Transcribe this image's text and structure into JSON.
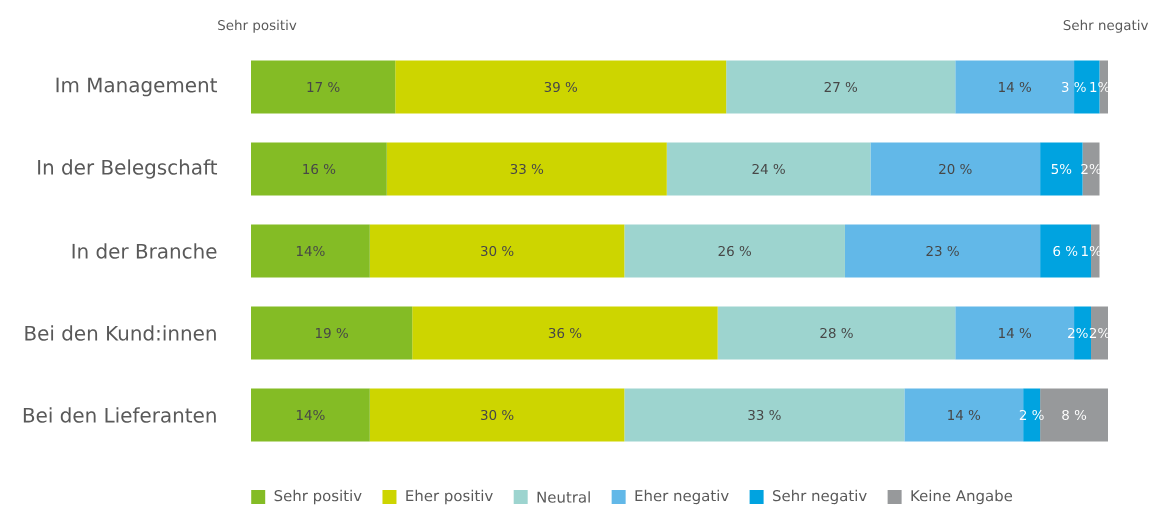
{
  "chart_data": {
    "type": "bar",
    "orientation": "horizontal",
    "stacked": true,
    "categories": [
      "Im Management",
      "In der Belegschaft",
      "In der Branche",
      "Bei den Kund:innen",
      "Bei den Lieferanten"
    ],
    "series": [
      {
        "name": "Sehr positiv",
        "color": "#84bc25",
        "values": [
          17,
          16,
          14,
          19,
          14
        ],
        "value_labels": [
          "17 %",
          "16 %",
          "14%",
          "19 %",
          "14%"
        ]
      },
      {
        "name": "Eher positiv",
        "color": "#cdd500",
        "values": [
          39,
          33,
          30,
          36,
          30
        ],
        "value_labels": [
          "39 %",
          "33 %",
          "30 %",
          "36 %",
          "30 %"
        ]
      },
      {
        "name": "Neutral",
        "color": "#9dd4cf",
        "values": [
          27,
          24,
          26,
          28,
          33
        ],
        "value_labels": [
          "27 %",
          "24 %",
          "26 %",
          "28 %",
          "33 %"
        ]
      },
      {
        "name": "Eher negativ",
        "color": "#62b8e8",
        "values": [
          14,
          20,
          23,
          14,
          14
        ],
        "value_labels": [
          "14 %",
          "20 %",
          "23 %",
          "14 %",
          "14 %"
        ]
      },
      {
        "name": "Sehr negativ",
        "color": "#00a3e0",
        "values": [
          3,
          5,
          6,
          2,
          2
        ],
        "value_labels": [
          "3 %",
          "5%",
          "6 %",
          "2%",
          "2 %"
        ]
      },
      {
        "name": "Keine Angabe",
        "color": "#97999b",
        "values": [
          1,
          2,
          1,
          2,
          8
        ],
        "value_labels": [
          "1%",
          "2%",
          "1%",
          "2%",
          "8 %"
        ]
      }
    ],
    "annotations": [
      "Sehr positiv",
      "Sehr negativ"
    ],
    "legend": "bottom"
  }
}
